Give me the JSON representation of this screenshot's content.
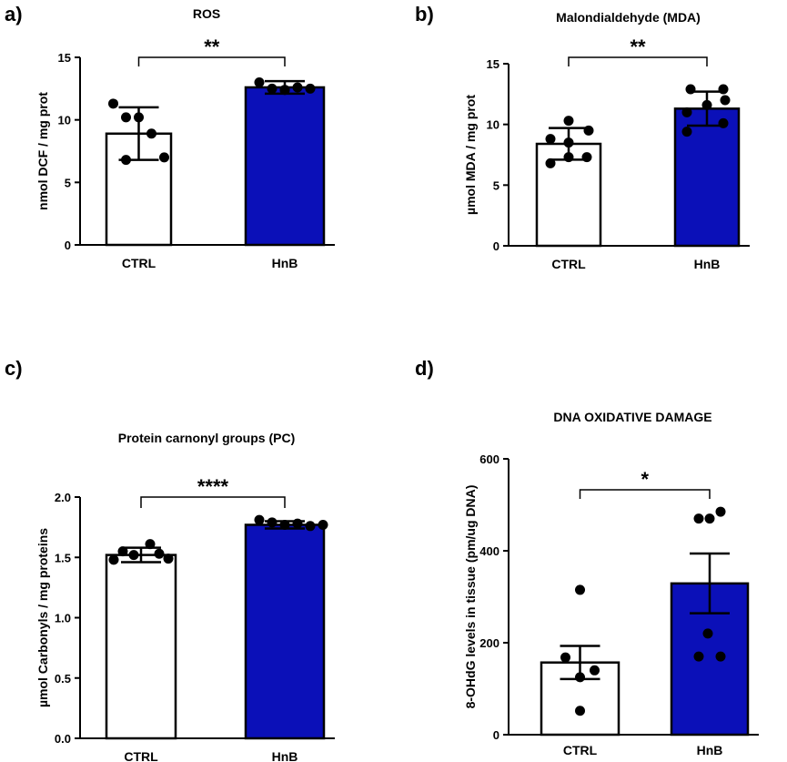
{
  "chart_data": [
    {
      "panel": "a)",
      "type": "bar",
      "title": "ROS",
      "ylabel": "nmol DCF / mg prot",
      "ylim": [
        0,
        15
      ],
      "yticks": [
        0,
        5,
        10,
        15
      ],
      "ytick_labels": [
        "0",
        "5",
        "10",
        "15"
      ],
      "categories": [
        "CTRL",
        "HnB"
      ],
      "values": [
        8.9,
        12.6
      ],
      "errors": [
        2.1,
        0.5
      ],
      "bar_colors": [
        "#ffffff",
        "#0b10b8"
      ],
      "points": [
        [
          11.3,
          10.2,
          10.2,
          8.9,
          7.0,
          6.8
        ],
        [
          13.0,
          12.5,
          12.4,
          12.6,
          12.5,
          12.4
        ]
      ],
      "significance": "**"
    },
    {
      "panel": "b)",
      "type": "bar",
      "title": "Malondialdehyde (MDA)",
      "ylabel": "µmol MDA / mg prot",
      "ylim": [
        0,
        15
      ],
      "yticks": [
        0,
        5,
        10,
        15
      ],
      "ytick_labels": [
        "0",
        "5",
        "10",
        "15"
      ],
      "categories": [
        "CTRL",
        "HnB"
      ],
      "values": [
        8.4,
        11.3
      ],
      "errors": [
        1.3,
        1.4
      ],
      "bar_colors": [
        "#ffffff",
        "#0b10b8"
      ],
      "points": [
        [
          10.3,
          9.5,
          8.8,
          8.5,
          7.3,
          6.8,
          7.3
        ],
        [
          12.9,
          12.9,
          11.6,
          11.0,
          10.1,
          9.4,
          12.0
        ]
      ],
      "significance": "**"
    },
    {
      "panel": "c)",
      "type": "bar",
      "title": "Protein carnonyl groups (PC)",
      "ylabel": "µmol Carbonyls / mg proteins",
      "ylim": [
        0,
        2
      ],
      "yticks": [
        0,
        0.5,
        1,
        1.5,
        2
      ],
      "ytick_labels": [
        "0.0",
        "0.5",
        "1.0",
        "1.5",
        "2.0"
      ],
      "categories": [
        "CTRL",
        "HnB"
      ],
      "values": [
        1.52,
        1.77
      ],
      "errors": [
        0.06,
        0.03
      ],
      "bar_colors": [
        "#ffffff",
        "#0b10b8"
      ],
      "points": [
        [
          1.55,
          1.49,
          1.48,
          1.52,
          1.61,
          1.53
        ],
        [
          1.81,
          1.79,
          1.77,
          1.78,
          1.76,
          1.77
        ]
      ],
      "significance": "****"
    },
    {
      "panel": "d)",
      "type": "bar",
      "title": "DNA OXIDATIVE DAMAGE",
      "ylabel": "8-OHdG levels in tissue  (pm/ug DNA)",
      "ylim": [
        0,
        600
      ],
      "yticks": [
        0,
        200,
        400,
        600
      ],
      "ytick_labels": [
        "0",
        "200",
        "400",
        "600"
      ],
      "categories": [
        "CTRL",
        "HnB"
      ],
      "values": [
        157,
        329
      ],
      "errors": [
        36,
        65
      ],
      "bar_colors": [
        "#ffffff",
        "#0b10b8"
      ],
      "points": [
        [
          315,
          168,
          140,
          125,
          52
        ],
        [
          470,
          485,
          470,
          220,
          170,
          170
        ]
      ],
      "significance": "*"
    }
  ]
}
